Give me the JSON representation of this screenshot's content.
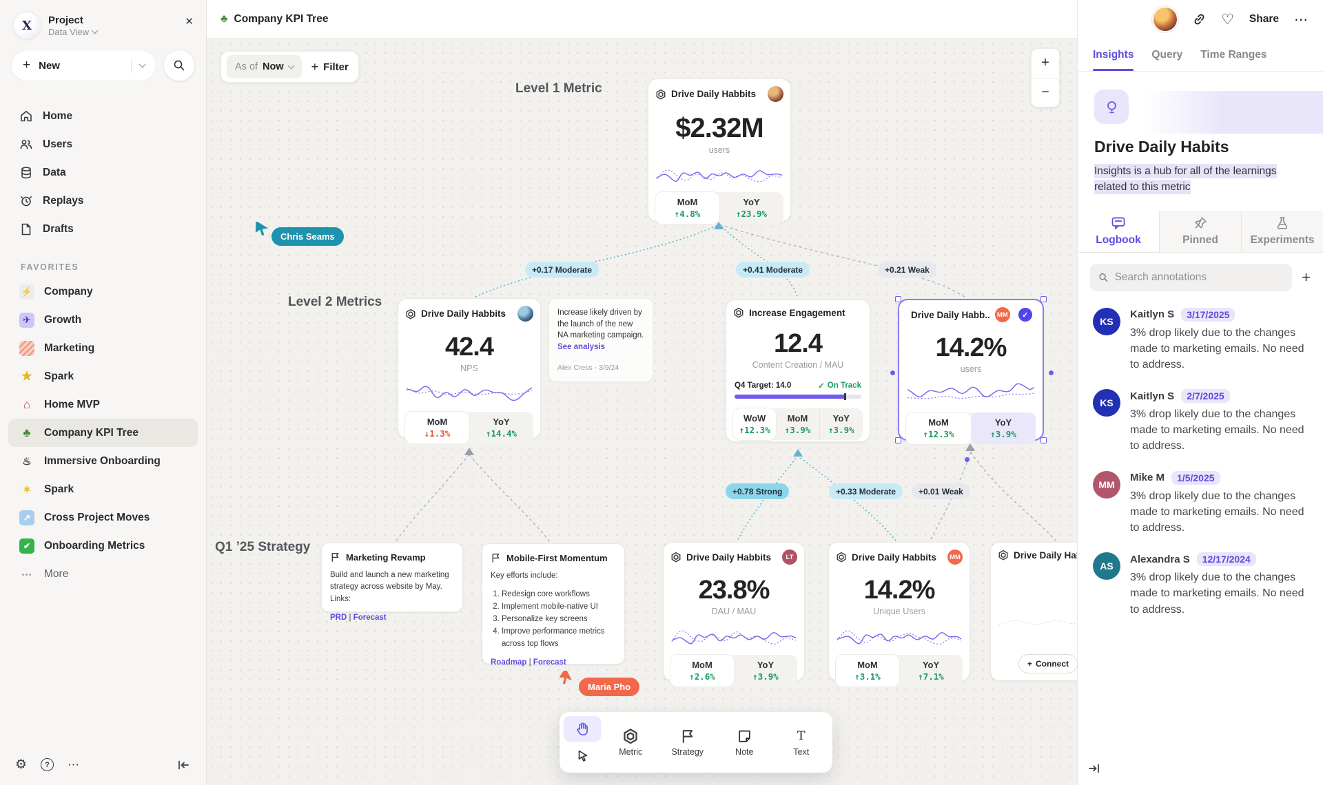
{
  "colors": {
    "accent": "#5b4be0",
    "spark": "#7b6cf0",
    "green": "#189a62",
    "red": "#e05b45"
  },
  "sidebar": {
    "project": "Project",
    "workspace": "Data View",
    "new_label": "New",
    "nav": [
      {
        "icon": "home-icon",
        "label": "Home"
      },
      {
        "icon": "users-icon",
        "label": "Users"
      },
      {
        "icon": "database-icon",
        "label": "Data"
      },
      {
        "icon": "replay-clock-icon",
        "label": "Replays"
      },
      {
        "icon": "draft-file-icon",
        "label": "Drafts"
      }
    ],
    "favorites_label": "FAVORITES",
    "favorites": [
      {
        "icon": "bolt-icon",
        "label": "Company"
      },
      {
        "icon": "rocket-icon",
        "label": "Growth"
      },
      {
        "icon": "megaphone-icon",
        "label": "Marketing"
      },
      {
        "icon": "star-icon",
        "label": "Spark"
      },
      {
        "icon": "house-icon",
        "label": "Home MVP"
      },
      {
        "icon": "tree-icon",
        "label": "Company KPI Tree"
      },
      {
        "icon": "train-icon",
        "label": "Immersive Onboarding"
      },
      {
        "icon": "sparkles-icon",
        "label": "Spark"
      },
      {
        "icon": "up-right-arrow-icon",
        "label": "Cross Project Moves"
      },
      {
        "icon": "check-icon",
        "label": "Onboarding Metrics"
      }
    ],
    "more_label": "More"
  },
  "header": {
    "title": "Company KPI Tree",
    "share_label": "Share"
  },
  "canvas": {
    "as_of_label": "As of",
    "as_of_value": "Now",
    "filter_label": "Filter",
    "level1_label": "Level 1 Metric",
    "level2_label": "Level 2 Metrics",
    "q1_label": "Q1 ’25 Strategy",
    "edges": {
      "e1": "+0.17 Moderate",
      "e2": "+0.41 Moderate",
      "e3": "+0.21 Weak",
      "e4": "+0.78 Strong",
      "e5": "+0.33 Moderate",
      "e6": "+0.01 Weak"
    },
    "cursors": {
      "c1": {
        "name": "Chris Seams",
        "color": "#1d93ad"
      },
      "c2": {
        "name": "Maria Pho",
        "color": "#f2684a"
      }
    },
    "connect_label": "Connect"
  },
  "cards": {
    "level1": {
      "title": "Drive Daily Habbits",
      "value": "$2.32M",
      "unit": "users",
      "mom_label": "MoM",
      "mom": "↑4.8%",
      "yoy_label": "YoY",
      "yoy": "↑23.9%"
    },
    "nps": {
      "title": "Drive Daily Habbits",
      "value": "42.4",
      "unit": "NPS",
      "mom_label": "MoM",
      "mom": "↓1.3%",
      "yoy_label": "YoY",
      "yoy": "↑14.4%"
    },
    "note": {
      "text": "Increase likely driven by the launch of the new NA marketing campaign.",
      "link": "See analysis",
      "author": "Alex Cress - 3/9/24"
    },
    "engagement": {
      "title": "Increase Engagement",
      "value": "12.4",
      "unit": "Content Creation / MAU",
      "target": "Q4 Target: 14.0",
      "status": "On Track",
      "progress_pct": 88,
      "wow_label": "WoW",
      "wow": "↑12.3%",
      "mom_label": "MoM",
      "mom": "↑3.9%",
      "yoy_label": "YoY",
      "yoy": "↑3.9%"
    },
    "selected": {
      "title": "Drive Daily Habb..",
      "badge": "MM",
      "value": "14.2%",
      "unit": "users",
      "mom_label": "MoM",
      "mom": "↑12.3%",
      "yoy_label": "YoY",
      "yoy": "↑3.9%"
    },
    "strategy1": {
      "title": "Marketing Revamp",
      "body": "Build and launch a new marketing strategy across website by May. Links:",
      "link1": "PRD",
      "link2": "Forecast"
    },
    "strategy2": {
      "title": "Mobile-First Momentum",
      "intro": "Key efforts include:",
      "items": [
        "Redesign core workflows",
        "Implement mobile-native UI",
        "Personalize key screens",
        "Improve performance metrics across top flows"
      ],
      "link1": "Roadmap",
      "link2": "Forecast"
    },
    "dau": {
      "title": "Drive Daily Habbits",
      "badge": "LT",
      "value": "23.8%",
      "unit": "DAU / MAU",
      "mom_label": "MoM",
      "mom": "↑2.6%",
      "yoy_label": "YoY",
      "yoy": "↑3.9%"
    },
    "unique": {
      "title": "Drive Daily Habbits",
      "badge": "MM",
      "value": "14.2%",
      "unit": "Unique Users",
      "mom_label": "MoM",
      "mom": "↑3.1%",
      "yoy_label": "YoY",
      "yoy": "↑7.1%"
    },
    "partial": {
      "title": "Drive Daily Hab"
    }
  },
  "toolbar": {
    "metric_label": "Metric",
    "strategy_label": "Strategy",
    "note_label": "Note",
    "text_label": "Text"
  },
  "panel": {
    "tabs": {
      "insights": "Insights",
      "query": "Query",
      "time_ranges": "Time Ranges"
    },
    "title": "Drive Daily Habits",
    "subtitle": "Insights is a hub for all of the learnings related to this metric",
    "subtabs": {
      "logbook": "Logbook",
      "pinned": "Pinned",
      "experiments": "Experiments"
    },
    "search_placeholder": "Search annotations",
    "annotations": [
      {
        "initials": "KS",
        "name": "Kaitlyn S",
        "date": "3/17/2025",
        "color": "#2230b5",
        "text": "3% drop likely due to the changes made to marketing emails. No need to address."
      },
      {
        "initials": "KS",
        "name": "Kaitlyn S",
        "date": "2/7/2025",
        "color": "#2230b5",
        "text": "3% drop likely due to the changes made to marketing emails. No need to address."
      },
      {
        "initials": "MM",
        "name": "Mike M",
        "date": "1/5/2025",
        "color": "#b2566b",
        "text": "3% drop likely due to the changes made to marketing emails. No need to address."
      },
      {
        "initials": "AS",
        "name": "Alexandra S",
        "date": "12/17/2024",
        "color": "#20788c",
        "text": "3% drop likely due to the changes made to marketing emails. No need to address."
      }
    ]
  }
}
